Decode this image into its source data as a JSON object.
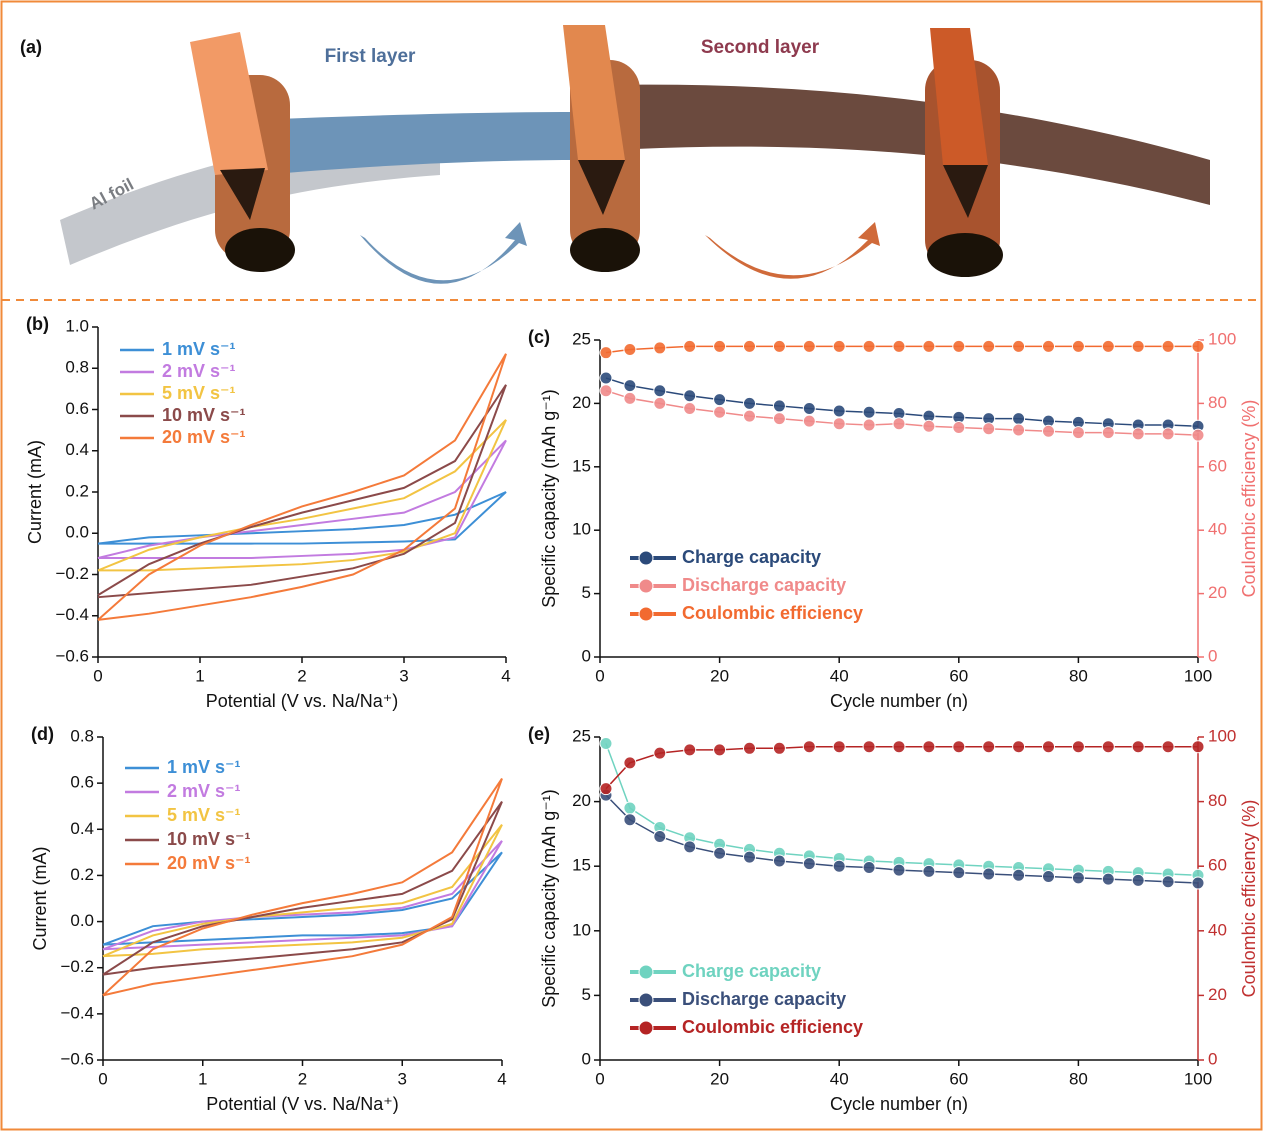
{
  "diagram": {
    "label": "(a)",
    "first_layer": "First layer",
    "second_layer": "Second layer",
    "foil": "Al foil"
  },
  "chart_data": [
    {
      "type": "line",
      "label": "(b)",
      "xlabel": "Potential (V vs. Na/Na⁺)",
      "ylabel": "Current (mA)",
      "x": [
        0,
        0.5,
        1,
        1.5,
        2,
        2.5,
        3,
        3.5,
        4,
        3.5,
        3,
        2.5,
        2,
        1.5,
        1,
        0.5,
        0
      ],
      "xlim": [
        0,
        4
      ],
      "xticks": [
        0,
        1,
        2,
        3,
        4
      ],
      "ylim": [
        -0.6,
        1.0
      ],
      "yticks": [
        {
          "value": -0.6,
          "label": "−0.6"
        },
        {
          "value": -0.4,
          "label": "−0.4"
        },
        {
          "value": -0.2,
          "label": "−0.2"
        },
        {
          "value": 0,
          "label": "0.0"
        },
        0.2,
        0.4,
        0.6,
        0.8,
        {
          "value": 1.0,
          "label": "1.0"
        }
      ],
      "legend": "upper left",
      "series": [
        {
          "name": "1 mV s⁻¹",
          "color": "#3d8fd6",
          "values": [
            -0.05,
            -0.02,
            -0.01,
            0.0,
            0.01,
            0.02,
            0.04,
            0.09,
            0.2,
            -0.03,
            -0.04,
            -0.045,
            -0.05,
            -0.05,
            -0.05,
            -0.05,
            -0.05
          ]
        },
        {
          "name": "2 mV s⁻¹",
          "color": "#c27be0",
          "values": [
            -0.12,
            -0.06,
            -0.02,
            0.01,
            0.04,
            0.07,
            0.1,
            0.2,
            0.45,
            -0.02,
            -0.08,
            -0.1,
            -0.11,
            -0.12,
            -0.12,
            -0.12,
            -0.12
          ]
        },
        {
          "name": "5 mV s⁻¹",
          "color": "#f2c443",
          "values": [
            -0.18,
            -0.08,
            -0.02,
            0.03,
            0.07,
            0.12,
            0.17,
            0.3,
            0.55,
            0.0,
            -0.09,
            -0.13,
            -0.15,
            -0.16,
            -0.17,
            -0.18,
            -0.18
          ]
        },
        {
          "name": "10 mV s⁻¹",
          "color": "#8b4a4a",
          "values": [
            -0.3,
            -0.15,
            -0.05,
            0.03,
            0.1,
            0.16,
            0.22,
            0.35,
            0.72,
            0.05,
            -0.1,
            -0.17,
            -0.21,
            -0.25,
            -0.27,
            -0.29,
            -0.31
          ]
        },
        {
          "name": "20 mV s⁻¹",
          "color": "#f47a3a",
          "values": [
            -0.42,
            -0.2,
            -0.06,
            0.04,
            0.13,
            0.2,
            0.28,
            0.45,
            0.87,
            0.12,
            -0.08,
            -0.2,
            -0.26,
            -0.31,
            -0.35,
            -0.39,
            -0.42
          ]
        }
      ]
    },
    {
      "type": "line",
      "markers": true,
      "label": "(c)",
      "xlabel": "Cycle number (n)",
      "ylabel": "Specific capacity (mAh g⁻¹)",
      "y2label": "Coulombic efficiency (%)",
      "y2_color": "#f07070",
      "x": [
        1,
        5,
        10,
        15,
        20,
        25,
        30,
        35,
        40,
        45,
        50,
        55,
        60,
        65,
        70,
        75,
        80,
        85,
        90,
        95,
        100
      ],
      "xlim": [
        0,
        100
      ],
      "xticks": [
        0,
        20,
        40,
        60,
        80,
        100
      ],
      "ylim": [
        0,
        25
      ],
      "yticks": [
        0,
        5,
        10,
        15,
        20,
        25
      ],
      "y2lim": [
        0,
        100
      ],
      "y2ticks": [
        0,
        20,
        40,
        60,
        80,
        100
      ],
      "legend": "lower left",
      "series": [
        {
          "name": "Charge capacity",
          "color": "#2b4a7a",
          "values": [
            22.0,
            21.4,
            21.0,
            20.6,
            20.3,
            20.0,
            19.8,
            19.6,
            19.4,
            19.3,
            19.2,
            19.0,
            18.9,
            18.8,
            18.8,
            18.6,
            18.5,
            18.4,
            18.3,
            18.3,
            18.2
          ]
        },
        {
          "name": "Discharge capacity",
          "color": "#f08a8a",
          "values": [
            21.0,
            20.4,
            20.0,
            19.6,
            19.3,
            19.0,
            18.8,
            18.6,
            18.4,
            18.3,
            18.4,
            18.2,
            18.1,
            18.0,
            17.9,
            17.8,
            17.7,
            17.7,
            17.6,
            17.6,
            17.5
          ]
        },
        {
          "name": "Coulombic efficiency",
          "color": "#f26a30",
          "axis": "y2",
          "values": [
            96,
            97,
            97.5,
            98,
            98,
            98,
            98,
            98,
            98,
            98,
            98,
            98,
            98,
            98,
            98,
            98,
            98,
            98,
            98,
            98,
            98
          ]
        }
      ]
    },
    {
      "type": "line",
      "label": "(d)",
      "xlabel": "Potential (V vs. Na/Na⁺)",
      "ylabel": "Current (mA)",
      "x": [
        0,
        0.5,
        1,
        1.5,
        2,
        2.5,
        3,
        3.5,
        4,
        3.5,
        3,
        2.5,
        2,
        1.5,
        1,
        0.5,
        0
      ],
      "xlim": [
        0,
        4
      ],
      "xticks": [
        0,
        1,
        2,
        3,
        4
      ],
      "ylim": [
        -0.6,
        0.8
      ],
      "yticks": [
        {
          "value": -0.6,
          "label": "−0.6"
        },
        {
          "value": -0.4,
          "label": "−0.4"
        },
        {
          "value": -0.2,
          "label": "−0.2"
        },
        {
          "value": 0,
          "label": "0.0"
        },
        0.2,
        0.4,
        0.6,
        0.8
      ],
      "legend": "upper left",
      "series": [
        {
          "name": "1 mV s⁻¹",
          "color": "#3d8fd6",
          "values": [
            -0.1,
            -0.02,
            0.0,
            0.01,
            0.02,
            0.03,
            0.05,
            0.1,
            0.3,
            -0.02,
            -0.05,
            -0.06,
            -0.06,
            -0.07,
            -0.08,
            -0.09,
            -0.1
          ]
        },
        {
          "name": "2 mV s⁻¹",
          "color": "#c27be0",
          "values": [
            -0.12,
            -0.04,
            0.0,
            0.02,
            0.03,
            0.04,
            0.06,
            0.12,
            0.35,
            -0.02,
            -0.06,
            -0.07,
            -0.08,
            -0.09,
            -0.1,
            -0.11,
            -0.12
          ]
        },
        {
          "name": "5 mV s⁻¹",
          "color": "#f2c443",
          "values": [
            -0.15,
            -0.06,
            -0.01,
            0.02,
            0.04,
            0.06,
            0.08,
            0.15,
            0.42,
            -0.01,
            -0.07,
            -0.09,
            -0.1,
            -0.11,
            -0.12,
            -0.14,
            -0.15
          ]
        },
        {
          "name": "10 mV s⁻¹",
          "color": "#8b4a4a",
          "values": [
            -0.23,
            -0.09,
            -0.02,
            0.02,
            0.06,
            0.09,
            0.12,
            0.22,
            0.52,
            0.01,
            -0.09,
            -0.12,
            -0.14,
            -0.16,
            -0.18,
            -0.2,
            -0.23
          ]
        },
        {
          "name": "20 mV s⁻¹",
          "color": "#f47a3a",
          "values": [
            -0.32,
            -0.12,
            -0.03,
            0.03,
            0.08,
            0.12,
            0.17,
            0.3,
            0.62,
            0.02,
            -0.1,
            -0.15,
            -0.18,
            -0.21,
            -0.24,
            -0.27,
            -0.32
          ]
        }
      ]
    },
    {
      "type": "line",
      "markers": true,
      "label": "(e)",
      "xlabel": "Cycle number (n)",
      "ylabel": "Specific capacity (mAh g⁻¹)",
      "y2label": "Coulombic efficiency (%)",
      "y2_color": "#c03030",
      "x": [
        1,
        5,
        10,
        15,
        20,
        25,
        30,
        35,
        40,
        45,
        50,
        55,
        60,
        65,
        70,
        75,
        80,
        85,
        90,
        95,
        100
      ],
      "xlim": [
        0,
        100
      ],
      "xticks": [
        0,
        20,
        40,
        60,
        80,
        100
      ],
      "ylim": [
        0,
        25
      ],
      "yticks": [
        0,
        5,
        10,
        15,
        20,
        25
      ],
      "y2lim": [
        0,
        100
      ],
      "y2ticks": [
        0,
        20,
        40,
        60,
        80,
        100
      ],
      "legend": "lower left",
      "series": [
        {
          "name": "Charge capacity",
          "color": "#6fd3c0",
          "values": [
            24.5,
            19.5,
            18.0,
            17.2,
            16.7,
            16.3,
            16.0,
            15.8,
            15.6,
            15.4,
            15.3,
            15.2,
            15.1,
            15.0,
            14.9,
            14.8,
            14.7,
            14.6,
            14.5,
            14.4,
            14.3
          ]
        },
        {
          "name": "Discharge capacity",
          "color": "#3a4f7a",
          "values": [
            20.5,
            18.6,
            17.3,
            16.5,
            16.0,
            15.7,
            15.4,
            15.2,
            15.0,
            14.9,
            14.7,
            14.6,
            14.5,
            14.4,
            14.3,
            14.2,
            14.1,
            14.0,
            13.9,
            13.8,
            13.7
          ]
        },
        {
          "name": "Coulombic efficiency",
          "color": "#b52424",
          "axis": "y2",
          "values": [
            84,
            92,
            95,
            96,
            96,
            96.5,
            96.5,
            97,
            97,
            97,
            97,
            97,
            97,
            97,
            97,
            97,
            97,
            97,
            97,
            97,
            97
          ]
        }
      ]
    }
  ]
}
